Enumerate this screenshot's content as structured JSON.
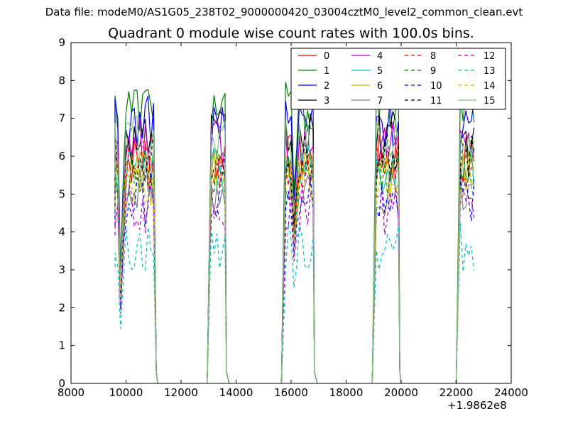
{
  "figure": {
    "suptitle": "Data file: modeM0/AS1G05_238T02_9000000420_03004cztM0_level2_common_clean.evt",
    "title": "Quadrant 0 module wise count rates with 100.0s bins.",
    "x_offset_label": "+1.9862e8"
  },
  "chart_data": {
    "type": "line",
    "title": "Quadrant 0 module wise count rates with 100.0s bins.",
    "xlabel": "",
    "ylabel": "",
    "x_offset": 198620000,
    "xlim": [
      8000,
      24000
    ],
    "ylim": [
      0,
      9
    ],
    "xticks": [
      8000,
      10000,
      12000,
      14000,
      16000,
      18000,
      20000,
      22000,
      24000
    ],
    "yticks": [
      0,
      1,
      2,
      3,
      4,
      5,
      6,
      7,
      8,
      9
    ],
    "grid": false,
    "legend": {
      "placement": "top-right",
      "columns": 4
    },
    "segments": [
      {
        "x_start": 9600,
        "x_end": 11050,
        "fall_to": 11150
      },
      {
        "x_start": 13100,
        "x_end": 13600,
        "fall_to": 13750
      },
      {
        "x_start": 15800,
        "x_end": 16800,
        "fall_to": 16950
      },
      {
        "x_start": 19100,
        "x_end": 19900,
        "fall_to": 20000
      },
      {
        "x_start": 22150,
        "x_end": 22700,
        "fall_to": 22700
      }
    ],
    "series": [
      {
        "name": "0",
        "color": "#ff0000",
        "style": "solid",
        "level": 5.9
      },
      {
        "name": "1",
        "color": "#007f00",
        "style": "solid",
        "level": 7.3
      },
      {
        "name": "2",
        "color": "#0000ff",
        "style": "solid",
        "level": 6.9
      },
      {
        "name": "3",
        "color": "#000000",
        "style": "solid",
        "level": 6.5
      },
      {
        "name": "4",
        "color": "#bf00bf",
        "style": "solid",
        "level": 6.3
      },
      {
        "name": "5",
        "color": "#00bfbf",
        "style": "solid",
        "level": 5.6
      },
      {
        "name": "6",
        "color": "#bfbf00",
        "style": "solid",
        "level": 5.4
      },
      {
        "name": "7",
        "color": "#7f7f7f",
        "style": "solid",
        "level": 5.1
      },
      {
        "name": "8",
        "color": "#ff0000",
        "style": "dashed",
        "level": 5.8
      },
      {
        "name": "9",
        "color": "#007f00",
        "style": "dashed",
        "level": 5.5
      },
      {
        "name": "10",
        "color": "#0000ff",
        "style": "dashed",
        "level": 4.9
      },
      {
        "name": "11",
        "color": "#000000",
        "style": "dashed",
        "level": 6.0
      },
      {
        "name": "12",
        "color": "#bf00bf",
        "style": "dashed",
        "level": 4.6
      },
      {
        "name": "13",
        "color": "#00bfbf",
        "style": "dashed",
        "level": 3.6
      },
      {
        "name": "14",
        "color": "#bfbf00",
        "style": "dashed",
        "level": 5.4
      },
      {
        "name": "15",
        "color": "#7fbf7f",
        "style": "solid",
        "level": 6.4
      }
    ]
  }
}
